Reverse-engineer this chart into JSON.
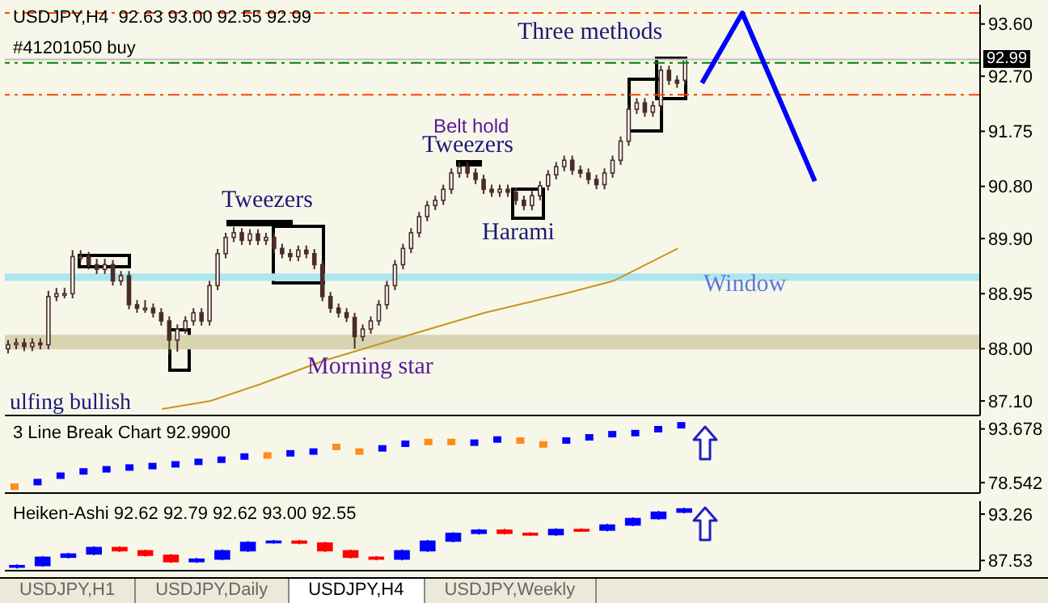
{
  "chart_data": [
    {
      "type": "candlestick",
      "title": "USDJPY,H4  92.63 93.00 92.55 92.99",
      "categories": [
        null,
        null,
        null,
        null,
        null,
        null,
        null,
        null,
        null,
        null,
        null,
        null,
        null,
        null,
        null,
        null,
        null,
        null,
        null,
        null,
        null,
        null,
        null,
        null,
        null,
        null,
        null,
        null,
        null,
        null,
        null,
        null,
        null,
        null,
        null,
        null,
        null,
        null,
        null,
        null,
        null,
        null,
        null,
        null,
        null,
        null,
        null,
        null,
        null,
        null,
        null,
        null,
        null,
        null,
        null,
        null,
        null,
        null,
        null,
        null,
        null,
        null,
        null,
        null,
        null,
        null,
        null,
        null,
        null,
        null,
        null,
        null,
        null,
        null,
        null,
        null,
        null,
        null,
        null,
        null,
        null,
        null,
        null,
        null,
        null,
        null,
        null,
        null,
        null,
        null,
        null,
        null,
        null,
        null,
        null,
        null,
        null,
        null,
        null,
        null,
        null,
        null,
        null,
        null,
        null,
        null,
        null,
        null,
        null,
        null,
        null,
        null,
        null,
        null,
        null,
        null,
        null,
        null,
        null,
        null,
        null
      ],
      "color": "#4a2c2a",
      "ohlc": [
        [
          88.0,
          88.15,
          87.92,
          88.07
        ],
        [
          88.07,
          88.18,
          87.99,
          88.1
        ],
        [
          88.1,
          88.18,
          87.96,
          88.04
        ],
        [
          88.04,
          88.18,
          87.96,
          88.1
        ],
        [
          88.1,
          88.18,
          87.99,
          88.07
        ],
        [
          88.07,
          89.0,
          87.99,
          88.9
        ],
        [
          88.9,
          89.05,
          88.82,
          88.95
        ],
        [
          88.95,
          89.05,
          88.87,
          88.95
        ],
        [
          88.95,
          89.7,
          88.87,
          89.59
        ],
        [
          89.59,
          89.7,
          89.5,
          89.59
        ],
        [
          89.59,
          89.67,
          89.37,
          89.45
        ],
        [
          89.45,
          89.55,
          89.29,
          89.37
        ],
        [
          89.37,
          89.55,
          89.29,
          89.45
        ],
        [
          89.45,
          89.53,
          89.09,
          89.17
        ],
        [
          89.17,
          89.34,
          89.09,
          89.26
        ],
        [
          89.26,
          89.34,
          88.68,
          88.76
        ],
        [
          88.76,
          88.84,
          88.62,
          88.7
        ],
        [
          88.7,
          88.84,
          88.62,
          88.7
        ],
        [
          88.7,
          88.78,
          88.54,
          88.62
        ],
        [
          88.62,
          88.7,
          88.4,
          88.48
        ],
        [
          88.48,
          88.56,
          87.9,
          88.15
        ],
        [
          88.15,
          88.42,
          87.95,
          88.34
        ],
        [
          88.34,
          88.56,
          88.26,
          88.48
        ],
        [
          88.48,
          88.7,
          88.4,
          88.62
        ],
        [
          88.62,
          88.7,
          88.4,
          88.48
        ],
        [
          88.48,
          89.17,
          88.4,
          89.09
        ],
        [
          89.09,
          89.72,
          89.01,
          89.64
        ],
        [
          89.64,
          90.0,
          89.56,
          89.92
        ],
        [
          89.92,
          90.1,
          89.84,
          90.0
        ],
        [
          90.0,
          90.08,
          89.79,
          89.87
        ],
        [
          89.87,
          90.06,
          89.79,
          89.98
        ],
        [
          89.98,
          90.06,
          89.79,
          89.87
        ],
        [
          89.87,
          90.0,
          89.79,
          89.92
        ],
        [
          89.92,
          90.0,
          89.65,
          89.73
        ],
        [
          89.73,
          89.81,
          89.56,
          89.64
        ],
        [
          89.64,
          89.72,
          89.51,
          89.59
        ],
        [
          89.59,
          89.78,
          89.51,
          89.7
        ],
        [
          89.7,
          89.78,
          89.56,
          89.64
        ],
        [
          89.64,
          89.72,
          89.37,
          89.45
        ],
        [
          89.45,
          89.53,
          88.82,
          88.9
        ],
        [
          88.9,
          88.98,
          88.62,
          88.7
        ],
        [
          88.7,
          88.78,
          88.54,
          88.62
        ],
        [
          88.62,
          88.7,
          88.46,
          88.54
        ],
        [
          88.54,
          88.62,
          88.0,
          88.21
        ],
        [
          88.21,
          88.42,
          88.13,
          88.34
        ],
        [
          88.34,
          88.56,
          88.26,
          88.48
        ],
        [
          88.48,
          88.84,
          88.4,
          88.76
        ],
        [
          88.76,
          89.17,
          88.68,
          89.09
        ],
        [
          89.09,
          89.53,
          89.01,
          89.45
        ],
        [
          89.45,
          89.81,
          89.37,
          89.73
        ],
        [
          89.73,
          90.08,
          89.65,
          90.0
        ],
        [
          90.0,
          90.36,
          89.92,
          90.28
        ],
        [
          90.28,
          90.55,
          90.2,
          90.47
        ],
        [
          90.47,
          90.64,
          90.39,
          90.56
        ],
        [
          90.56,
          90.83,
          90.48,
          90.75
        ],
        [
          90.75,
          91.11,
          90.67,
          91.03
        ],
        [
          91.03,
          91.22,
          90.95,
          91.14
        ],
        [
          91.14,
          91.22,
          90.95,
          91.03
        ],
        [
          91.03,
          91.11,
          90.84,
          90.92
        ],
        [
          90.92,
          91.0,
          90.67,
          90.75
        ],
        [
          90.75,
          90.83,
          90.62,
          90.7
        ],
        [
          90.7,
          90.83,
          90.62,
          90.75
        ],
        [
          90.75,
          90.83,
          90.62,
          90.7
        ],
        [
          90.7,
          90.78,
          90.48,
          90.56
        ],
        [
          90.56,
          90.64,
          90.39,
          90.47
        ],
        [
          90.47,
          90.72,
          90.39,
          90.64
        ],
        [
          90.64,
          90.89,
          90.56,
          90.81
        ],
        [
          90.81,
          91.08,
          90.73,
          91.0
        ],
        [
          91.0,
          91.22,
          90.92,
          91.14
        ],
        [
          91.14,
          91.33,
          91.06,
          91.25
        ],
        [
          91.25,
          91.33,
          91.0,
          91.08
        ],
        [
          91.08,
          91.16,
          90.95,
          91.03
        ],
        [
          91.03,
          91.11,
          90.84,
          90.92
        ],
        [
          90.92,
          91.0,
          90.75,
          90.83
        ],
        [
          90.83,
          91.11,
          90.75,
          91.03
        ],
        [
          91.03,
          91.33,
          90.95,
          91.25
        ],
        [
          91.25,
          91.66,
          91.17,
          91.58
        ],
        [
          91.58,
          92.21,
          91.5,
          92.13
        ],
        [
          92.13,
          92.32,
          92.05,
          92.24
        ],
        [
          92.24,
          92.32,
          92.0,
          92.08
        ],
        [
          92.08,
          92.27,
          92.0,
          92.19
        ],
        [
          92.19,
          92.88,
          92.11,
          92.8
        ],
        [
          92.8,
          92.88,
          92.55,
          92.63
        ],
        [
          92.63,
          92.71,
          92.5,
          92.58
        ],
        [
          92.63,
          93.0,
          92.55,
          92.99
        ],
        null,
        null,
        null,
        null,
        null,
        null,
        null,
        null,
        null,
        null,
        null,
        null,
        null,
        null,
        null,
        null,
        null,
        null,
        null,
        null,
        null,
        null,
        null,
        null,
        null,
        null,
        null,
        null,
        null,
        null,
        null,
        null,
        null,
        null,
        null,
        null
      ],
      "series": [
        {
          "type": "line",
          "color": "#c8961e",
          "values": [
            null,
            null,
            null,
            null,
            null,
            null,
            null,
            null,
            null,
            null,
            null,
            null,
            null,
            null,
            null,
            null,
            null,
            null,
            null,
            86.96,
            null,
            null,
            null,
            null,
            null,
            87.1,
            null,
            null,
            null,
            null,
            null,
            87.38,
            null,
            null,
            null,
            null,
            null,
            null,
            null,
            87.79,
            null,
            null,
            null,
            null,
            null,
            null,
            null,
            null,
            null,
            88.21,
            null,
            null,
            null,
            null,
            null,
            null,
            null,
            null,
            null,
            88.62,
            null,
            null,
            null,
            null,
            null,
            null,
            null,
            null,
            null,
            88.95,
            null,
            null,
            null,
            null,
            null,
            89.17,
            null,
            null,
            null,
            null,
            null,
            null,
            null,
            89.73,
            null,
            null,
            null,
            null,
            null,
            null,
            null,
            null,
            null,
            null,
            null,
            null,
            null,
            null,
            null,
            null,
            null,
            null,
            null,
            null,
            null,
            null,
            null,
            null,
            null,
            null,
            null,
            null,
            null,
            null,
            null,
            null,
            null,
            null,
            null,
            null,
            null
          ]
        },
        {
          "type": "line",
          "color": "#0000ff",
          "values": [
            null,
            null,
            null,
            null,
            null,
            null,
            null,
            null,
            null,
            null,
            null,
            null,
            null,
            null,
            null,
            null,
            null,
            null,
            null,
            null,
            null,
            null,
            null,
            null,
            null,
            null,
            null,
            null,
            null,
            null,
            null,
            null,
            null,
            null,
            null,
            null,
            null,
            null,
            null,
            null,
            null,
            null,
            null,
            null,
            null,
            null,
            null,
            null,
            null,
            null,
            null,
            null,
            null,
            null,
            null,
            null,
            null,
            null,
            null,
            null,
            null,
            null,
            null,
            null,
            null,
            null,
            null,
            null,
            null,
            null,
            null,
            null,
            null,
            null,
            null,
            null,
            null,
            null,
            null,
            null,
            null,
            null,
            null,
            null,
            null,
            null,
            92.58,
            null,
            null,
            null,
            null,
            93.79,
            null,
            null,
            null,
            null,
            null,
            null,
            null,
            null,
            90.89,
            null,
            null,
            null,
            null,
            null,
            null,
            null,
            null,
            null,
            null,
            null,
            null,
            null,
            null,
            null,
            null,
            null,
            null,
            null,
            null
          ]
        }
      ],
      "ylim": [
        86.85,
        93.93
      ],
      "yticks": [
        {
          "value": 93.6,
          "label": "93.60"
        },
        {
          "value": 92.7,
          "label": "92.70"
        },
        91.75,
        {
          "value": 90.8,
          "label": "90.80"
        },
        {
          "value": 89.9,
          "label": "89.90"
        },
        88.95,
        {
          "value": 88.0,
          "label": "88.00"
        },
        {
          "value": 87.1,
          "label": "87.10"
        }
      ],
      "tick_labels": "y",
      "ref_lines": [
        {
          "axis": "y",
          "value": 93.79,
          "color": "#ff4500",
          "line_style": "dashed"
        },
        {
          "axis": "y",
          "value": 92.99,
          "label": "92.99",
          "color": "#c0c0c0"
        },
        {
          "axis": "y",
          "value": 92.93,
          "label": "#41201050 buy",
          "color": "#008000",
          "line_style": "dashed"
        },
        {
          "axis": "y",
          "value": 92.38,
          "color": "#ff4500",
          "line_style": "dashed"
        }
      ],
      "bands": [
        {
          "axis": "y",
          "from": 89.17,
          "to": 89.3,
          "label": "Window",
          "color": "#aee6ee"
        },
        {
          "axis": "y",
          "from": 87.99,
          "to": 88.24,
          "color": "#d8d3b0"
        }
      ],
      "annotations": [
        "Three methods",
        "Belt hold",
        "Tweezers",
        "Tweezers",
        "Harami",
        "Morning star",
        "ulfing bullish"
      ]
    },
    {
      "type": "scatter",
      "title": "3 Line Break Chart 92.9900",
      "categories": [
        null,
        null,
        null,
        null,
        null,
        null,
        null,
        null,
        null,
        null,
        null,
        null,
        null,
        null,
        null,
        null,
        null,
        null,
        null,
        null,
        null,
        null,
        null,
        null,
        null,
        null,
        null,
        null,
        null,
        null,
        null,
        null,
        null,
        null,
        null,
        null,
        null,
        null,
        null,
        null,
        null,
        null,
        null
      ],
      "values": [
        77.4,
        78.7,
        80.5,
        81.7,
        82.3,
        82.8,
        83.2,
        83.7,
        84.4,
        85.0,
        85.9,
        86.2,
        86.8,
        87.3,
        88.6,
        87.3,
        88.2,
        89.5,
        90.0,
        90.0,
        89.8,
        90.7,
        90.4,
        89.3,
        90.4,
        91.3,
        92.2,
        92.5,
        93.6,
        94.7,
        null,
        null,
        null,
        null,
        null,
        null,
        null,
        null,
        null,
        null,
        null,
        null,
        null
      ],
      "colors": [
        "#ff8c1a",
        "#0000ff",
        "#0000ff",
        "#0000ff",
        "#0000ff",
        "#0000ff",
        "#0000ff",
        "#0000ff",
        "#0000ff",
        "#0000ff",
        "#0000ff",
        "#ff8c1a",
        "#0000ff",
        "#0000ff",
        "#ff8c1a",
        "#ff8c1a",
        "#0000ff",
        "#0000ff",
        "#ff8c1a",
        "#ff8c1a",
        "#0000ff",
        "#0000ff",
        "#ff8c1a",
        "#ff8c1a",
        "#0000ff",
        "#0000ff",
        "#0000ff",
        "#0000ff",
        "#0000ff",
        "#0000ff",
        null,
        null,
        null,
        null,
        null,
        null,
        null,
        null,
        null,
        null,
        null,
        null,
        null
      ],
      "marker": "square",
      "ylim": [
        75.6,
        96.1
      ],
      "yticks": [
        93.678,
        78.542
      ],
      "tick_labels": "y"
    },
    {
      "type": "candlestick",
      "title": "Heiken-Ashi 92.62 92.79 92.62 93.00 92.55",
      "categories": [
        null,
        null,
        null,
        null,
        null,
        null,
        null,
        null,
        null,
        null,
        null,
        null,
        null,
        null,
        null,
        null,
        null,
        null,
        null,
        null,
        null,
        null,
        null,
        null,
        null,
        null,
        null,
        null,
        null,
        null,
        null,
        null,
        null,
        null,
        null,
        null,
        null,
        null
      ],
      "ohlc": [
        [
          86.7,
          87.05,
          86.55,
          86.9
        ],
        [
          86.9,
          88.08,
          86.75,
          87.93
        ],
        [
          87.93,
          88.48,
          87.78,
          88.33
        ],
        [
          88.33,
          89.28,
          88.18,
          89.13
        ],
        [
          89.13,
          89.28,
          88.58,
          88.73
        ],
        [
          88.73,
          88.88,
          88.02,
          88.17
        ],
        [
          88.17,
          88.32,
          87.23,
          87.38
        ],
        [
          87.38,
          87.85,
          87.23,
          87.7
        ],
        [
          87.7,
          88.88,
          87.55,
          88.73
        ],
        [
          88.73,
          89.91,
          88.58,
          89.76
        ],
        [
          89.76,
          90.07,
          89.61,
          89.92
        ],
        [
          89.92,
          90.07,
          89.53,
          89.68
        ],
        [
          89.68,
          89.83,
          88.58,
          88.73
        ],
        [
          88.73,
          88.88,
          87.78,
          87.93
        ],
        [
          87.93,
          88.08,
          87.55,
          87.7
        ],
        [
          87.7,
          88.88,
          87.55,
          88.73
        ],
        [
          88.73,
          90.07,
          88.58,
          89.92
        ],
        [
          89.92,
          91.03,
          89.77,
          90.88
        ],
        [
          90.88,
          91.43,
          90.73,
          91.28
        ],
        [
          91.28,
          91.43,
          90.73,
          90.88
        ],
        [
          90.88,
          91.03,
          90.57,
          90.72
        ],
        [
          90.72,
          91.51,
          90.57,
          91.36
        ],
        [
          91.36,
          91.51,
          91.13,
          91.28
        ],
        [
          91.28,
          92.06,
          91.13,
          91.91
        ],
        [
          91.91,
          92.86,
          91.76,
          92.71
        ],
        [
          92.71,
          93.65,
          92.56,
          93.5
        ],
        [
          93.5,
          94.05,
          93.35,
          93.9
        ],
        null,
        null,
        null,
        null,
        null,
        null,
        null,
        null,
        null,
        null,
        null
      ],
      "colors": [
        "#0000ff",
        "#0000ff",
        "#0000ff",
        "#0000ff",
        "#ff0000",
        "#ff0000",
        "#ff0000",
        "#0000ff",
        "#0000ff",
        "#0000ff",
        "#0000ff",
        "#ff0000",
        "#ff0000",
        "#ff0000",
        "#ff0000",
        "#0000ff",
        "#0000ff",
        "#0000ff",
        "#0000ff",
        "#ff0000",
        "#ff0000",
        "#0000ff",
        "#ff0000",
        "#0000ff",
        "#0000ff",
        "#0000ff",
        "#0000ff",
        null,
        null,
        null,
        null,
        null,
        null,
        null,
        null,
        null,
        null,
        null
      ],
      "ylim": [
        86.27,
        94.86
      ],
      "yticks": [
        93.26,
        87.53
      ],
      "tick_labels": "y",
      "annotations": [
        "USDJPY,H1",
        "USDJPY,Daily",
        "USDJPY,H4",
        "USDJPY,Weekly"
      ]
    }
  ]
}
